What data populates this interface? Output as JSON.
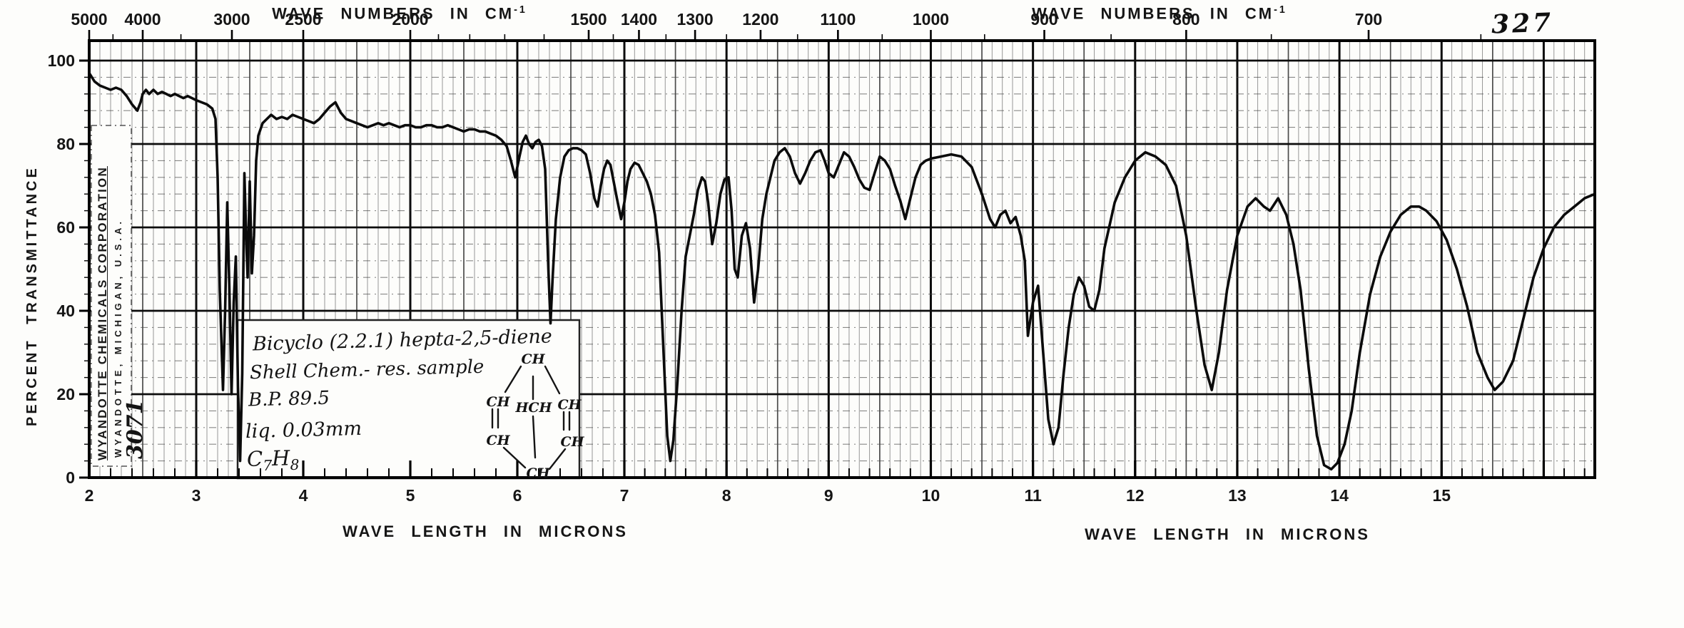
{
  "page": {
    "number": "327"
  },
  "titles": {
    "wave_numbers": "WAVE NUMBERS IN CM",
    "wave_numbers_sup": "-1",
    "wave_length": "WAVE LENGTH IN MICRONS",
    "y_axis": "PERCENT TRANSMITTANCE"
  },
  "branding": {
    "company_line1": "WYANDOTTE CHEMICALS CORPORATION",
    "company_line2": "WYANDOTTE, MICHIGAN, U.S.A.",
    "catalog_number": "3071"
  },
  "annotation": {
    "line1": "Bicyclo (2.2.1) hepta-2,5-diene",
    "line2": "Shell Chem.- res. sample",
    "line3": "B.P. 89.5",
    "line4": "liq. 0.03mm",
    "formula": {
      "base1": "C",
      "sub1": "7",
      "base2": "H",
      "sub2": "8"
    },
    "structure": {
      "atoms": [
        "CH",
        "CH",
        "CH",
        "HCH",
        "CH",
        "CH",
        "CH"
      ]
    }
  },
  "chart_data": {
    "type": "line",
    "xlabel": "WAVE LENGTH IN MICRONS",
    "x2label": "WAVE NUMBERS IN CM-1",
    "ylabel": "PERCENT TRANSMITTANCE",
    "xlim_microns": [
      2,
      16.5
    ],
    "ylim_percent": [
      0,
      100
    ],
    "grid": "on",
    "x_ticks_major_microns": [
      2,
      3,
      4,
      5,
      6,
      7,
      8,
      9,
      10,
      11,
      12,
      13,
      14,
      15
    ],
    "x_ticks_minor_step_microns": 0.2,
    "y_ticks_percent": [
      100,
      80,
      60,
      40,
      20,
      0
    ],
    "y_grid_minor_step_percent": 4,
    "top_ticks_major_wavenumbers": [
      5000,
      4000,
      3000,
      2500,
      2000,
      1500,
      1400,
      1300,
      1200,
      1100,
      1000,
      900,
      800,
      700
    ],
    "top_ticks_minor_wavenumbers": [
      4500,
      3500,
      1900,
      1800,
      1700,
      1600,
      1450,
      1350,
      1250,
      1150,
      1050,
      950,
      850,
      750,
      650
    ],
    "peak_minima_micron_percent": [
      [
        3.25,
        21
      ],
      [
        3.33,
        20
      ],
      [
        3.41,
        4
      ],
      [
        5.98,
        72
      ],
      [
        6.31,
        37
      ],
      [
        6.75,
        65
      ],
      [
        6.97,
        62
      ],
      [
        7.45,
        4
      ],
      [
        7.86,
        56
      ],
      [
        8.11,
        48
      ],
      [
        8.27,
        42
      ],
      [
        9.05,
        72
      ],
      [
        9.4,
        69
      ],
      [
        9.75,
        62
      ],
      [
        10.63,
        60
      ],
      [
        10.95,
        34
      ],
      [
        11.2,
        8
      ],
      [
        11.6,
        40
      ],
      [
        12.75,
        21
      ],
      [
        13.9,
        2
      ],
      [
        15.52,
        21
      ]
    ],
    "series": [
      {
        "name": "percent transmittance",
        "points": [
          [
            2.0,
            97
          ],
          [
            2.05,
            95
          ],
          [
            2.1,
            94
          ],
          [
            2.15,
            93.5
          ],
          [
            2.2,
            93
          ],
          [
            2.25,
            93.5
          ],
          [
            2.3,
            93
          ],
          [
            2.35,
            91.5
          ],
          [
            2.4,
            89.5
          ],
          [
            2.45,
            88
          ],
          [
            2.48,
            90
          ],
          [
            2.5,
            92
          ],
          [
            2.53,
            93
          ],
          [
            2.56,
            92
          ],
          [
            2.6,
            93
          ],
          [
            2.64,
            92
          ],
          [
            2.68,
            92.5
          ],
          [
            2.72,
            92
          ],
          [
            2.76,
            91.5
          ],
          [
            2.8,
            92
          ],
          [
            2.84,
            91.5
          ],
          [
            2.88,
            91
          ],
          [
            2.92,
            91.5
          ],
          [
            2.96,
            91
          ],
          [
            3.0,
            90.5
          ],
          [
            3.05,
            90
          ],
          [
            3.1,
            89.5
          ],
          [
            3.15,
            88.5
          ],
          [
            3.18,
            86
          ],
          [
            3.2,
            72
          ],
          [
            3.22,
            45
          ],
          [
            3.25,
            21
          ],
          [
            3.27,
            40
          ],
          [
            3.29,
            66
          ],
          [
            3.31,
            45
          ],
          [
            3.33,
            20
          ],
          [
            3.35,
            42
          ],
          [
            3.37,
            53
          ],
          [
            3.39,
            22
          ],
          [
            3.41,
            4
          ],
          [
            3.43,
            25
          ],
          [
            3.45,
            73
          ],
          [
            3.47,
            55
          ],
          [
            3.48,
            48
          ],
          [
            3.5,
            71
          ],
          [
            3.52,
            49
          ],
          [
            3.54,
            58
          ],
          [
            3.56,
            76
          ],
          [
            3.58,
            82
          ],
          [
            3.62,
            85
          ],
          [
            3.66,
            86
          ],
          [
            3.7,
            87
          ],
          [
            3.75,
            86
          ],
          [
            3.8,
            86.5
          ],
          [
            3.85,
            86
          ],
          [
            3.9,
            87
          ],
          [
            3.95,
            86.5
          ],
          [
            4.0,
            86
          ],
          [
            4.05,
            85.5
          ],
          [
            4.1,
            85
          ],
          [
            4.15,
            86
          ],
          [
            4.2,
            87.5
          ],
          [
            4.25,
            89
          ],
          [
            4.3,
            90
          ],
          [
            4.35,
            87.5
          ],
          [
            4.4,
            86
          ],
          [
            4.45,
            85.5
          ],
          [
            4.5,
            85
          ],
          [
            4.55,
            84.5
          ],
          [
            4.6,
            84
          ],
          [
            4.65,
            84.5
          ],
          [
            4.7,
            85
          ],
          [
            4.75,
            84.5
          ],
          [
            4.8,
            85
          ],
          [
            4.85,
            84.5
          ],
          [
            4.9,
            84
          ],
          [
            4.95,
            84.5
          ],
          [
            5.0,
            84.5
          ],
          [
            5.05,
            84
          ],
          [
            5.1,
            84
          ],
          [
            5.15,
            84.5
          ],
          [
            5.2,
            84.5
          ],
          [
            5.25,
            84
          ],
          [
            5.3,
            84
          ],
          [
            5.35,
            84.5
          ],
          [
            5.4,
            84
          ],
          [
            5.45,
            83.5
          ],
          [
            5.5,
            83
          ],
          [
            5.55,
            83.5
          ],
          [
            5.6,
            83.5
          ],
          [
            5.65,
            83
          ],
          [
            5.7,
            83
          ],
          [
            5.75,
            82.5
          ],
          [
            5.8,
            82
          ],
          [
            5.85,
            81
          ],
          [
            5.9,
            79.5
          ],
          [
            5.94,
            76
          ],
          [
            5.98,
            72
          ],
          [
            6.02,
            77
          ],
          [
            6.05,
            80.5
          ],
          [
            6.08,
            82
          ],
          [
            6.11,
            80
          ],
          [
            6.14,
            79
          ],
          [
            6.17,
            80.5
          ],
          [
            6.2,
            81
          ],
          [
            6.23,
            79.5
          ],
          [
            6.26,
            74
          ],
          [
            6.29,
            50
          ],
          [
            6.31,
            37
          ],
          [
            6.33,
            48
          ],
          [
            6.36,
            62
          ],
          [
            6.4,
            72
          ],
          [
            6.44,
            77
          ],
          [
            6.48,
            78.5
          ],
          [
            6.52,
            79
          ],
          [
            6.56,
            79
          ],
          [
            6.6,
            78.5
          ],
          [
            6.64,
            77.5
          ],
          [
            6.68,
            73
          ],
          [
            6.72,
            67
          ],
          [
            6.75,
            65
          ],
          [
            6.78,
            70
          ],
          [
            6.81,
            74
          ],
          [
            6.84,
            76
          ],
          [
            6.87,
            75
          ],
          [
            6.9,
            71
          ],
          [
            6.93,
            67
          ],
          [
            6.97,
            62
          ],
          [
            7.0,
            66
          ],
          [
            7.03,
            71
          ],
          [
            7.06,
            74
          ],
          [
            7.1,
            75.5
          ],
          [
            7.14,
            75
          ],
          [
            7.18,
            73
          ],
          [
            7.22,
            71
          ],
          [
            7.26,
            68
          ],
          [
            7.3,
            63
          ],
          [
            7.34,
            54
          ],
          [
            7.38,
            32
          ],
          [
            7.42,
            10
          ],
          [
            7.45,
            4
          ],
          [
            7.48,
            9
          ],
          [
            7.52,
            23
          ],
          [
            7.56,
            40
          ],
          [
            7.6,
            53
          ],
          [
            7.64,
            58
          ],
          [
            7.68,
            63
          ],
          [
            7.72,
            69
          ],
          [
            7.76,
            72
          ],
          [
            7.79,
            71
          ],
          [
            7.82,
            66
          ],
          [
            7.86,
            56
          ],
          [
            7.9,
            61
          ],
          [
            7.94,
            68
          ],
          [
            7.98,
            71.5
          ],
          [
            8.02,
            72
          ],
          [
            8.05,
            64
          ],
          [
            8.08,
            50
          ],
          [
            8.11,
            48
          ],
          [
            8.15,
            58
          ],
          [
            8.19,
            61
          ],
          [
            8.23,
            55
          ],
          [
            8.27,
            42
          ],
          [
            8.31,
            50
          ],
          [
            8.35,
            62
          ],
          [
            8.39,
            68
          ],
          [
            8.43,
            72
          ],
          [
            8.47,
            76
          ],
          [
            8.52,
            78
          ],
          [
            8.57,
            79
          ],
          [
            8.62,
            77
          ],
          [
            8.67,
            73
          ],
          [
            8.72,
            70.5
          ],
          [
            8.77,
            73
          ],
          [
            8.82,
            76
          ],
          [
            8.87,
            78
          ],
          [
            8.92,
            78.5
          ],
          [
            8.96,
            76
          ],
          [
            9.0,
            73
          ],
          [
            9.05,
            72
          ],
          [
            9.1,
            75
          ],
          [
            9.15,
            78
          ],
          [
            9.2,
            77
          ],
          [
            9.25,
            74.5
          ],
          [
            9.3,
            71.5
          ],
          [
            9.35,
            69.5
          ],
          [
            9.4,
            69
          ],
          [
            9.45,
            73
          ],
          [
            9.5,
            77
          ],
          [
            9.55,
            76
          ],
          [
            9.6,
            74
          ],
          [
            9.65,
            70
          ],
          [
            9.7,
            66.5
          ],
          [
            9.75,
            62
          ],
          [
            9.8,
            67
          ],
          [
            9.85,
            72
          ],
          [
            9.9,
            75
          ],
          [
            9.95,
            76
          ],
          [
            10.0,
            76.5
          ],
          [
            10.1,
            77
          ],
          [
            10.2,
            77.5
          ],
          [
            10.3,
            77
          ],
          [
            10.4,
            74.5
          ],
          [
            10.5,
            68
          ],
          [
            10.58,
            62
          ],
          [
            10.63,
            60
          ],
          [
            10.68,
            63
          ],
          [
            10.73,
            64
          ],
          [
            10.78,
            61
          ],
          [
            10.83,
            62.5
          ],
          [
            10.88,
            58
          ],
          [
            10.92,
            52
          ],
          [
            10.95,
            34
          ],
          [
            11.0,
            42
          ],
          [
            11.05,
            46
          ],
          [
            11.1,
            30
          ],
          [
            11.15,
            14
          ],
          [
            11.2,
            8
          ],
          [
            11.25,
            12
          ],
          [
            11.3,
            25
          ],
          [
            11.35,
            36
          ],
          [
            11.4,
            44
          ],
          [
            11.45,
            48
          ],
          [
            11.5,
            46
          ],
          [
            11.55,
            41
          ],
          [
            11.6,
            40
          ],
          [
            11.65,
            45
          ],
          [
            11.7,
            55
          ],
          [
            11.8,
            66
          ],
          [
            11.9,
            72
          ],
          [
            12.0,
            76
          ],
          [
            12.1,
            78
          ],
          [
            12.2,
            77
          ],
          [
            12.3,
            75
          ],
          [
            12.4,
            70
          ],
          [
            12.5,
            58
          ],
          [
            12.6,
            40
          ],
          [
            12.68,
            27
          ],
          [
            12.75,
            21
          ],
          [
            12.82,
            30
          ],
          [
            12.9,
            45
          ],
          [
            13.0,
            58
          ],
          [
            13.1,
            65
          ],
          [
            13.18,
            67
          ],
          [
            13.26,
            65
          ],
          [
            13.32,
            64
          ],
          [
            13.4,
            67
          ],
          [
            13.48,
            63
          ],
          [
            13.55,
            56
          ],
          [
            13.62,
            45
          ],
          [
            13.7,
            26
          ],
          [
            13.78,
            10
          ],
          [
            13.85,
            3
          ],
          [
            13.92,
            2
          ],
          [
            13.98,
            3.5
          ],
          [
            14.05,
            8
          ],
          [
            14.12,
            16
          ],
          [
            14.2,
            30
          ],
          [
            14.3,
            44
          ],
          [
            14.4,
            53
          ],
          [
            14.5,
            59
          ],
          [
            14.6,
            63
          ],
          [
            14.7,
            65
          ],
          [
            14.78,
            65
          ],
          [
            14.85,
            64
          ],
          [
            14.95,
            61.5
          ],
          [
            15.05,
            57
          ],
          [
            15.15,
            50
          ],
          [
            15.25,
            41
          ],
          [
            15.35,
            30
          ],
          [
            15.45,
            24
          ],
          [
            15.52,
            21
          ],
          [
            15.6,
            23
          ],
          [
            15.7,
            28
          ],
          [
            15.8,
            38
          ],
          [
            15.9,
            48
          ],
          [
            16.0,
            55
          ],
          [
            16.1,
            60
          ],
          [
            16.2,
            63
          ],
          [
            16.3,
            65
          ],
          [
            16.4,
            67
          ],
          [
            16.5,
            68
          ]
        ]
      }
    ]
  }
}
